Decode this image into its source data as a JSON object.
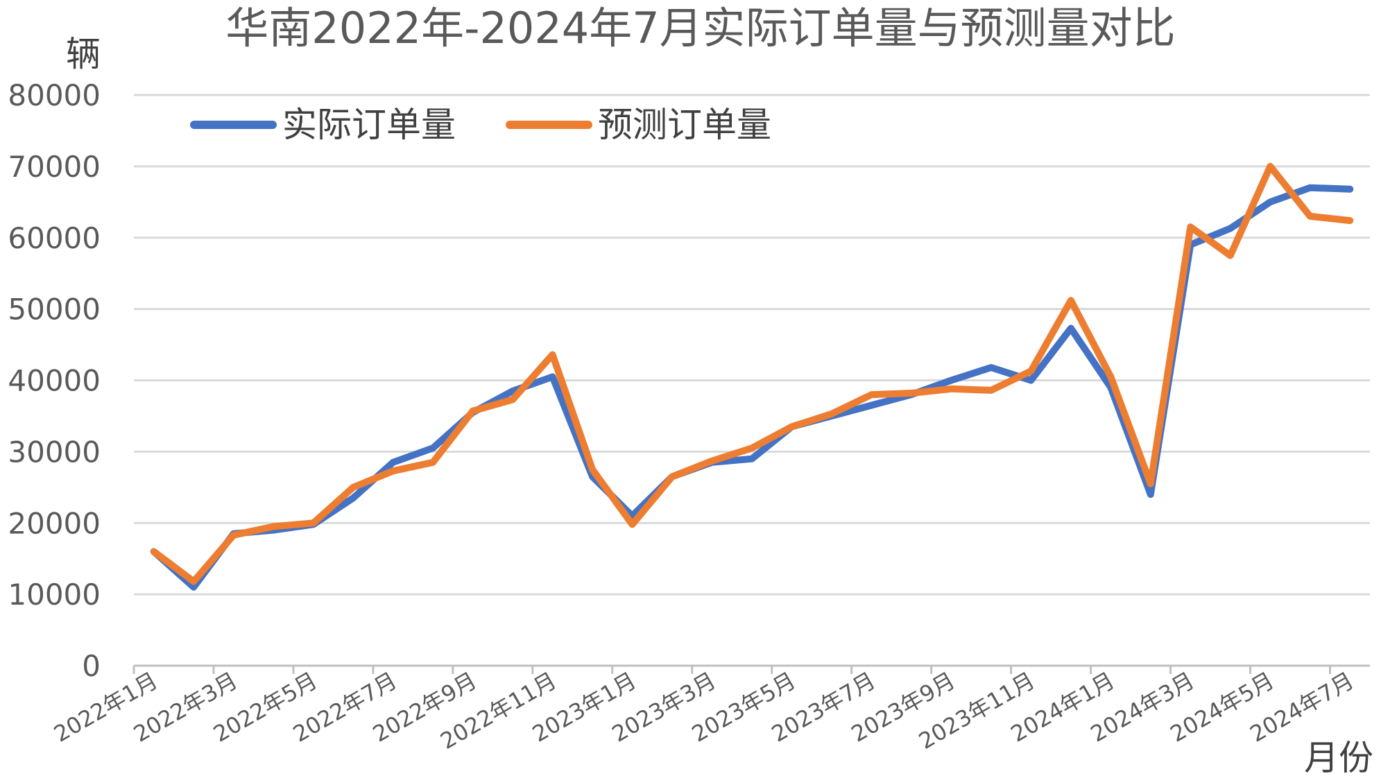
{
  "chart_data": {
    "type": "line",
    "title": "华南2022年-2024年7月实际订单量与预测量对比",
    "ylabel": "辆",
    "xlabel": "月份",
    "ylim": [
      0,
      80000
    ],
    "yticks": [
      0,
      10000,
      20000,
      30000,
      40000,
      50000,
      60000,
      70000,
      80000
    ],
    "legend_position": "top-left",
    "grid": true,
    "x": [
      "2022年1月",
      "2022年2月",
      "2022年3月",
      "2022年4月",
      "2022年5月",
      "2022年6月",
      "2022年7月",
      "2022年8月",
      "2022年9月",
      "2022年10月",
      "2022年11月",
      "2022年12月",
      "2023年1月",
      "2023年2月",
      "2023年3月",
      "2023年4月",
      "2023年5月",
      "2023年6月",
      "2023年7月",
      "2023年8月",
      "2023年9月",
      "2023年10月",
      "2023年11月",
      "2023年12月",
      "2024年1月",
      "2024年2月",
      "2024年3月",
      "2024年4月",
      "2024年5月",
      "2024年6月",
      "2024年7月"
    ],
    "xtick_labels": [
      "2022年1月",
      "2022年3月",
      "2022年5月",
      "2022年7月",
      "2022年9月",
      "2022年11月",
      "2023年1月",
      "2023年3月",
      "2023年5月",
      "2023年7月",
      "2023年9月",
      "2023年11月",
      "2024年1月",
      "2024年3月",
      "2024年5月",
      "2024年7月"
    ],
    "series": [
      {
        "name": "实际订单量",
        "color": "#4472C4",
        "values": [
          16000,
          11000,
          18500,
          19000,
          19800,
          23500,
          28500,
          30500,
          35500,
          38500,
          40500,
          26500,
          21000,
          26500,
          28500,
          29000,
          33500,
          35000,
          36500,
          38000,
          40000,
          41800,
          40000,
          47300,
          39000,
          24000,
          59000,
          61300,
          65000,
          67000,
          66800
        ]
      },
      {
        "name": "预测订单量",
        "color": "#ED7D31",
        "values": [
          16000,
          11800,
          18300,
          19500,
          20000,
          25000,
          27300,
          28500,
          35700,
          37300,
          43600,
          27500,
          19800,
          26500,
          28700,
          30500,
          33500,
          35300,
          38000,
          38200,
          38800,
          38600,
          41300,
          51200,
          40500,
          25500,
          61500,
          57500,
          70000,
          63000,
          62400
        ]
      }
    ]
  }
}
